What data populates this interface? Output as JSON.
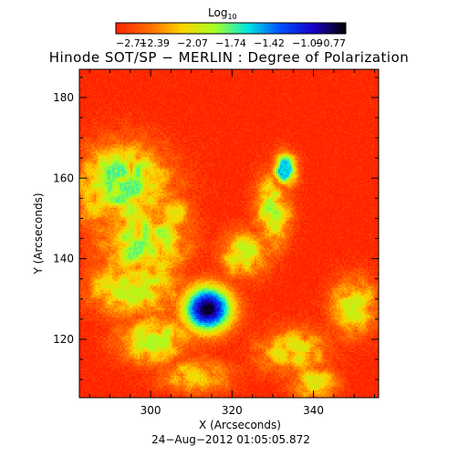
{
  "chart_data": {
    "type": "heatmap",
    "title": "Hinode SOT/SP − MERLIN : Degree of Polarization",
    "xlabel": "X (Arcseconds)",
    "ylabel": "Y (Arcseconds)",
    "timestamp": "24−Aug−2012 01:05:05.872",
    "xlim": [
      282.5,
      356
    ],
    "ylim": [
      105.5,
      187
    ],
    "x_ticks": [
      300,
      320,
      340
    ],
    "x_tick_labels": [
      "300",
      "320",
      "340"
    ],
    "y_ticks": [
      120,
      140,
      160,
      180
    ],
    "y_tick_labels": [
      "120",
      "140",
      "160",
      "180"
    ],
    "colorbar": {
      "label_main": "Log",
      "label_sub": "10",
      "tick_values": [
        -2.71,
        -2.39,
        -2.07,
        -1.74,
        -1.42,
        -1.09,
        -0.77
      ],
      "tick_labels": [
        "−2.71",
        "−2.39",
        "−2.07",
        "−1.74",
        "−1.42",
        "−1.09",
        "−0.77"
      ],
      "range": [
        -2.71,
        -0.77
      ],
      "colors": [
        "#ff2400",
        "#ff6a00",
        "#ffd200",
        "#a8ff20",
        "#00e8e0",
        "#0050ff",
        "#1800c8",
        "#000000"
      ]
    },
    "features": [
      {
        "kind": "spot",
        "name": "sunspot",
        "x": 314,
        "y": 127.5,
        "peak": -0.8,
        "sigma": [
          4.2,
          4.0
        ]
      },
      {
        "kind": "plage",
        "x": 293,
        "y": 158,
        "level": -1.75,
        "sigma": [
          8,
          7
        ]
      },
      {
        "kind": "plage",
        "x": 298,
        "y": 144,
        "level": -1.8,
        "sigma": [
          7,
          6
        ]
      },
      {
        "kind": "plage",
        "x": 296,
        "y": 133,
        "level": -1.95,
        "sigma": [
          8,
          5
        ]
      },
      {
        "kind": "plage",
        "x": 301,
        "y": 120,
        "level": -1.9,
        "sigma": [
          6,
          4
        ]
      },
      {
        "kind": "plage",
        "x": 330,
        "y": 152,
        "level": -1.85,
        "sigma": [
          3,
          6
        ]
      },
      {
        "kind": "plage",
        "x": 333,
        "y": 162,
        "level": -1.55,
        "sigma": [
          2,
          3
        ]
      },
      {
        "kind": "plage",
        "x": 323,
        "y": 141,
        "level": -1.95,
        "sigma": [
          4,
          4
        ]
      },
      {
        "kind": "plage",
        "x": 350,
        "y": 128,
        "level": -2.0,
        "sigma": [
          4,
          5
        ]
      },
      {
        "kind": "plage",
        "x": 335,
        "y": 117,
        "level": -2.05,
        "sigma": [
          6,
          4
        ]
      },
      {
        "kind": "plage",
        "x": 311,
        "y": 111,
        "level": -2.1,
        "sigma": [
          6,
          3
        ]
      },
      {
        "kind": "plage",
        "x": 306,
        "y": 151,
        "level": -2.1,
        "sigma": [
          3,
          3
        ]
      },
      {
        "kind": "plage",
        "x": 340,
        "y": 109,
        "level": -2.05,
        "sigma": [
          4,
          3
        ]
      }
    ],
    "background_level": -2.71,
    "grid": false,
    "legend": "colorbar top"
  }
}
